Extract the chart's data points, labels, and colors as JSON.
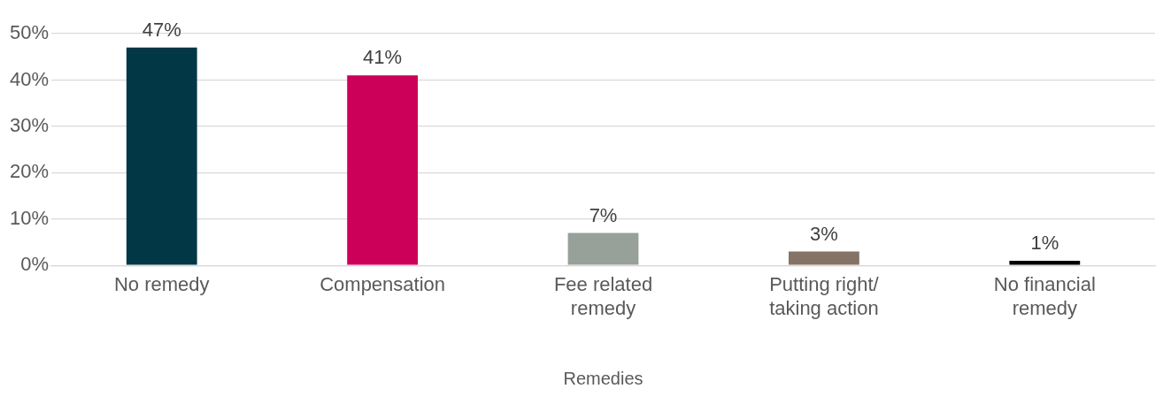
{
  "chart_data": {
    "type": "bar",
    "xlabel": "Remedies",
    "categories": [
      "No remedy",
      "Compensation",
      "Fee related remedy",
      "Putting right/ taking action",
      "No financial remedy"
    ],
    "values": [
      47,
      41,
      7,
      3,
      1
    ],
    "colors": [
      "#023745",
      "#cc0058",
      "#98a199",
      "#857366",
      "#000000"
    ],
    "value_labels": [
      "47%",
      "41%",
      "7%",
      "3%",
      "1%"
    ],
    "ylim": [
      0,
      50
    ],
    "yticks": [
      {
        "value": 0,
        "label": "0%"
      },
      {
        "value": 10,
        "label": "10%"
      },
      {
        "value": 20,
        "label": "20%"
      },
      {
        "value": 30,
        "label": "30%"
      },
      {
        "value": 40,
        "label": "40%"
      },
      {
        "value": 50,
        "label": "50%"
      }
    ],
    "grid": "y",
    "legend": false
  }
}
